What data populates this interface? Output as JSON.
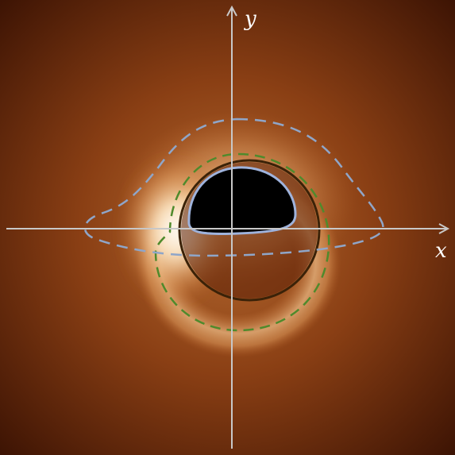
{
  "axes": {
    "x_label": "x",
    "y_label": "y",
    "color": "#c8c8c8"
  },
  "colors": {
    "background_outer": "#3a1203",
    "background_mid": "#7a3410",
    "glow_bright": "#ffffff",
    "glow_warm": "#f3c98e",
    "shadow": "#000000",
    "outer_dashed_curve": "#8fa6c9",
    "inner_solid_curve": "#9fb3dc",
    "green_dashed_circle": "#4f8a2c",
    "dark_circle": "#3b2208"
  }
}
